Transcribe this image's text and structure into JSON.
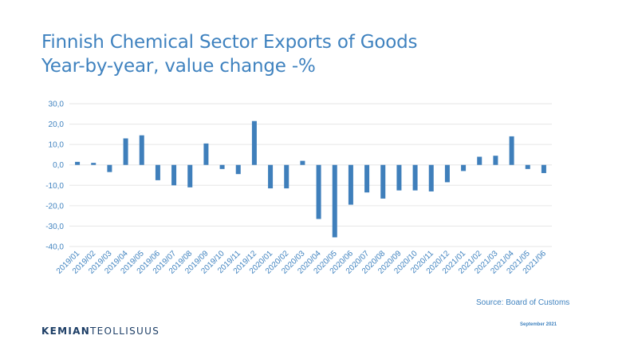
{
  "colors": {
    "accent": "#3f82bf",
    "bar": "#3f7fbb",
    "grid": "#e6e6e6",
    "logo": "#1d3e66"
  },
  "header": {
    "title_line1": "Finnish Chemical Sector Exports of Goods",
    "title_line2": "Year-by-year, value change -%"
  },
  "footer": {
    "source": "Source: Board of Customs",
    "logo_bold": "KEMIAN",
    "logo_light": "TEOLLISUUS",
    "date": "September 2021"
  },
  "chart_data": {
    "type": "bar",
    "title": "Finnish Chemical Sector Exports of Goods",
    "subtitle": "Year-by-year, value change -%",
    "xlabel": "",
    "ylabel": "",
    "ylim": [
      -40,
      30
    ],
    "yticks": [
      "30,0",
      "20,0",
      "10,0",
      "0,0",
      "-10,0",
      "-20,0",
      "-30,0",
      "-40,0"
    ],
    "grid": true,
    "categories": [
      "2019/01",
      "2019/02",
      "2019/03",
      "2019/04",
      "2019/05",
      "2019/06",
      "2019/07",
      "2019/08",
      "2019/09",
      "2019/10",
      "2019/11",
      "2019/12",
      "2020/01",
      "2020/02",
      "2020/03",
      "2020/04",
      "2020/05",
      "2020/06",
      "2020/07",
      "2020/08",
      "2020/09",
      "2020/10",
      "2020/11",
      "2020/12",
      "2021/01",
      "2021/02",
      "2021/03",
      "2021/04",
      "2021/05",
      "2021/06"
    ],
    "values": [
      1.5,
      1.0,
      -3.5,
      13.0,
      14.5,
      -7.5,
      -10.0,
      -11.0,
      10.5,
      -2.0,
      -4.5,
      21.5,
      -11.5,
      -11.5,
      2.0,
      -26.5,
      -35.5,
      -19.5,
      -13.5,
      -16.5,
      -12.5,
      -12.5,
      -13.0,
      -8.5,
      -3.0,
      4.0,
      4.5,
      14.0,
      -2.0,
      -4.0
    ]
  }
}
